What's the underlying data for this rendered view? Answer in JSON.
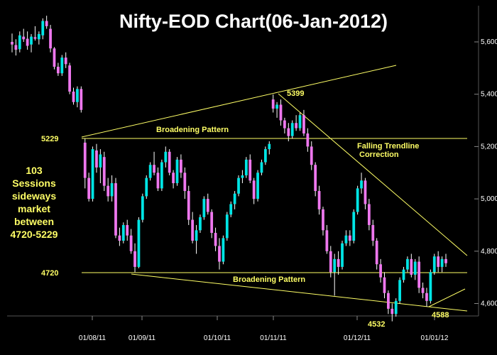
{
  "chart_data": {
    "type": "candlestick",
    "title": "Nifty-EOD Chart(06-Jan-2012)",
    "y_ticks": [
      "5,600.00",
      "5,400.00",
      "5,200.00",
      "5,000.00",
      "4,800.00",
      "4,600.00"
    ],
    "y_tick_values": [
      5600,
      5400,
      5200,
      5000,
      4800,
      4600
    ],
    "x_ticks": [
      "01/08/11",
      "01/09/11",
      "01/10/11",
      "01/11/11",
      "01/12/11",
      "01/01/12"
    ],
    "ylim": [
      4520,
      5700
    ],
    "grid": false,
    "colors": {
      "up": "#00e5e5",
      "down": "#ee77ee",
      "line": "#ffff66",
      "background": "#000000",
      "text": "#ffffff"
    },
    "candles": [
      [
        5600,
        5632,
        5560,
        5590
      ],
      [
        5588,
        5610,
        5548,
        5570
      ],
      [
        5572,
        5640,
        5560,
        5625
      ],
      [
        5620,
        5650,
        5600,
        5610
      ],
      [
        5612,
        5640,
        5570,
        5585
      ],
      [
        5590,
        5630,
        5560,
        5620
      ],
      [
        5618,
        5660,
        5605,
        5612
      ],
      [
        5610,
        5640,
        5590,
        5630
      ],
      [
        5625,
        5690,
        5610,
        5680
      ],
      [
        5680,
        5700,
        5650,
        5660
      ],
      [
        5650,
        5665,
        5560,
        5575
      ],
      [
        5575,
        5580,
        5495,
        5505
      ],
      [
        5505,
        5520,
        5470,
        5480
      ],
      [
        5480,
        5550,
        5470,
        5540
      ],
      [
        5540,
        5560,
        5500,
        5515
      ],
      [
        5510,
        5520,
        5400,
        5410
      ],
      [
        5410,
        5425,
        5360,
        5370
      ],
      [
        5370,
        5430,
        5350,
        5420
      ],
      [
        5420,
        5430,
        5330,
        5340
      ],
      [
        5215,
        5230,
        5040,
        5080
      ],
      [
        5080,
        5100,
        4990,
        5000
      ],
      [
        5000,
        5200,
        4990,
        5190
      ],
      [
        5185,
        5210,
        5100,
        5120
      ],
      [
        5120,
        5190,
        5060,
        5170
      ],
      [
        5160,
        5180,
        5030,
        5050
      ],
      [
        5050,
        5080,
        4990,
        5010
      ],
      [
        5010,
        5090,
        4990,
        5060
      ],
      [
        5060,
        5080,
        4850,
        4860
      ],
      [
        4860,
        4890,
        4820,
        4840
      ],
      [
        4840,
        4910,
        4830,
        4900
      ],
      [
        4900,
        4920,
        4840,
        4860
      ],
      [
        4860,
        4885,
        4790,
        4800
      ],
      [
        4800,
        4830,
        4720,
        4740
      ],
      [
        4740,
        4930,
        4735,
        4920
      ],
      [
        4920,
        5020,
        4910,
        5010
      ],
      [
        5010,
        5090,
        5000,
        5080
      ],
      [
        5080,
        5140,
        5070,
        5130
      ],
      [
        5130,
        5180,
        5090,
        5100
      ],
      [
        5100,
        5120,
        5030,
        5040
      ],
      [
        5040,
        5150,
        5030,
        5140
      ],
      [
        5140,
        5200,
        5120,
        5180
      ],
      [
        5180,
        5190,
        5090,
        5100
      ],
      [
        5100,
        5110,
        5040,
        5060
      ],
      [
        5060,
        5160,
        5050,
        5150
      ],
      [
        5150,
        5170,
        5080,
        5100
      ],
      [
        5100,
        5120,
        5000,
        5030
      ],
      [
        5030,
        5050,
        4900,
        4920
      ],
      [
        4920,
        4950,
        4830,
        4840
      ],
      [
        4840,
        4900,
        4790,
        4880
      ],
      [
        4880,
        4940,
        4870,
        4930
      ],
      [
        4930,
        5010,
        4920,
        5000
      ],
      [
        5000,
        5020,
        4940,
        4950
      ],
      [
        4950,
        4960,
        4850,
        4870
      ],
      [
        4870,
        4890,
        4800,
        4820
      ],
      [
        4820,
        4850,
        4730,
        4760
      ],
      [
        4760,
        4860,
        4750,
        4850
      ],
      [
        4850,
        4950,
        4840,
        4940
      ],
      [
        4940,
        4990,
        4930,
        4980
      ],
      [
        4980,
        5030,
        4960,
        5020
      ],
      [
        5020,
        5090,
        5010,
        5080
      ],
      [
        5080,
        5110,
        5060,
        5090
      ],
      [
        5090,
        5160,
        5080,
        5150
      ],
      [
        5150,
        5170,
        5060,
        5070
      ],
      [
        5070,
        5080,
        4980,
        5000
      ],
      [
        5000,
        5110,
        4990,
        5100
      ],
      [
        5100,
        5150,
        5090,
        5140
      ],
      [
        5140,
        5200,
        5130,
        5190
      ],
      [
        5190,
        5220,
        5170,
        5210
      ],
      [
        5380,
        5399,
        5330,
        5345
      ],
      [
        5345,
        5370,
        5310,
        5360
      ],
      [
        5360,
        5380,
        5280,
        5300
      ],
      [
        5300,
        5310,
        5250,
        5270
      ],
      [
        5270,
        5290,
        5220,
        5240
      ],
      [
        5240,
        5300,
        5230,
        5290
      ],
      [
        5290,
        5320,
        5260,
        5270
      ],
      [
        5270,
        5330,
        5260,
        5320
      ],
      [
        5320,
        5340,
        5240,
        5250
      ],
      [
        5250,
        5270,
        5180,
        5200
      ],
      [
        5200,
        5220,
        5110,
        5130
      ],
      [
        5130,
        5140,
        5010,
        5030
      ],
      [
        5030,
        5050,
        4940,
        4960
      ],
      [
        4960,
        4970,
        4860,
        4880
      ],
      [
        4880,
        4900,
        4790,
        4800
      ],
      [
        4800,
        4820,
        4700,
        4720
      ],
      [
        4720,
        4790,
        4630,
        4770
      ],
      [
        4770,
        4800,
        4710,
        4740
      ],
      [
        4740,
        4840,
        4730,
        4830
      ],
      [
        4830,
        4880,
        4820,
        4860
      ],
      [
        4860,
        4880,
        4820,
        4840
      ],
      [
        4840,
        4960,
        4830,
        4950
      ],
      [
        4950,
        5050,
        4940,
        5040
      ],
      [
        5040,
        5100,
        5020,
        5070
      ],
      [
        5070,
        5080,
        4960,
        4980
      ],
      [
        4980,
        5000,
        4880,
        4900
      ],
      [
        4900,
        4920,
        4820,
        4840
      ],
      [
        4840,
        4850,
        4730,
        4750
      ],
      [
        4750,
        4770,
        4680,
        4700
      ],
      [
        4700,
        4720,
        4620,
        4640
      ],
      [
        4640,
        4650,
        4560,
        4580
      ],
      [
        4580,
        4600,
        4532,
        4560
      ],
      [
        4560,
        4620,
        4550,
        4610
      ],
      [
        4610,
        4700,
        4600,
        4690
      ],
      [
        4690,
        4740,
        4680,
        4730
      ],
      [
        4730,
        4780,
        4720,
        4770
      ],
      [
        4770,
        4790,
        4700,
        4710
      ],
      [
        4710,
        4770,
        4690,
        4760
      ],
      [
        4760,
        4780,
        4640,
        4660
      ],
      [
        4660,
        4680,
        4620,
        4640
      ],
      [
        4640,
        4660,
        4588,
        4610
      ],
      [
        4610,
        4730,
        4600,
        4720
      ],
      [
        4720,
        4790,
        4710,
        4780
      ],
      [
        4780,
        4800,
        4720,
        4740
      ],
      [
        4740,
        4780,
        4720,
        4770
      ],
      [
        4770,
        4790,
        4740,
        4754
      ]
    ]
  },
  "labels": {
    "peak_5399": "5399",
    "level_5229": "5229",
    "level_4720": "4720",
    "low_4532": "4532",
    "low_4588": "4588",
    "broadening_top": "Broadening Pattern",
    "broadening_bottom": "Broadening Pattern",
    "falling_line1": "Falling Trendline",
    "falling_line2": "Correction",
    "side_note": [
      "103",
      "Sessions",
      "sideways",
      "market",
      "between",
      "4720-5229"
    ]
  }
}
